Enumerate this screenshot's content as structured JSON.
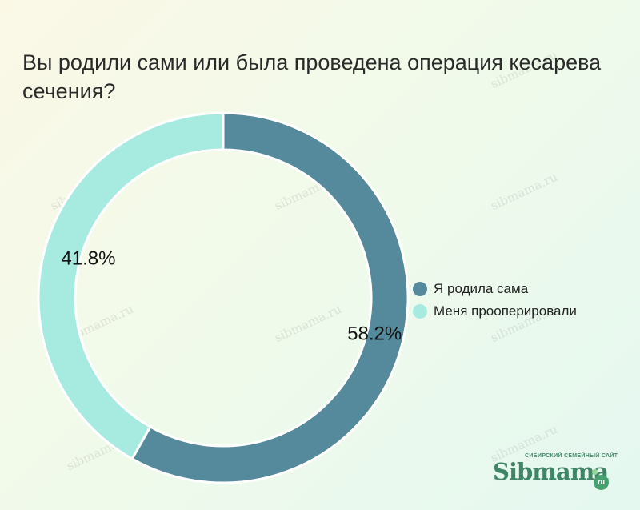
{
  "chart_data": {
    "type": "pie",
    "title": "Вы родили сами или была проведена операция кесарева сечения?",
    "series": [
      {
        "name": "Я родила сама",
        "value": 58.2,
        "label": "58.2%",
        "color": "#548a9b"
      },
      {
        "name": "Меня прооперировали",
        "value": 41.8,
        "label": "41.8%",
        "color": "#a7eadf"
      }
    ],
    "donut": true,
    "legend_position": "right"
  },
  "watermark": "sibmama.ru",
  "logo": {
    "subtitle": "СИБИРСКИЙ СЕМЕЙНЫЙ САЙТ",
    "name": "Sibmama",
    "suffix": "ru"
  }
}
